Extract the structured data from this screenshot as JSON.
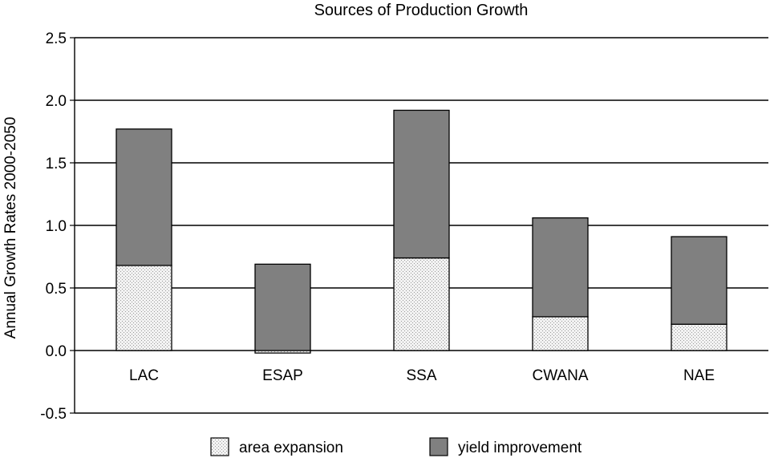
{
  "chart_data": {
    "type": "bar",
    "stacked": true,
    "title": "Sources of Production Growth",
    "xlabel": "",
    "ylabel": "Annual Growth Rates 2000-2050",
    "ylim": [
      -0.5,
      2.5
    ],
    "yticks": [
      "-0.5",
      "0.0",
      "0.5",
      "1.0",
      "1.5",
      "2.0",
      "2.5"
    ],
    "grid": true,
    "legend_position": "bottom",
    "categories": [
      "LAC",
      "ESAP",
      "SSA",
      "CWANA",
      "NAE"
    ],
    "series": [
      {
        "name": "area expansion",
        "values": [
          0.68,
          -0.02,
          0.74,
          0.27,
          0.21
        ],
        "color": "#efefef",
        "pattern": "dotted"
      },
      {
        "name": "yield improvement",
        "values": [
          1.09,
          0.69,
          1.18,
          0.79,
          0.7
        ],
        "color": "#808080",
        "pattern": "solid"
      }
    ]
  }
}
